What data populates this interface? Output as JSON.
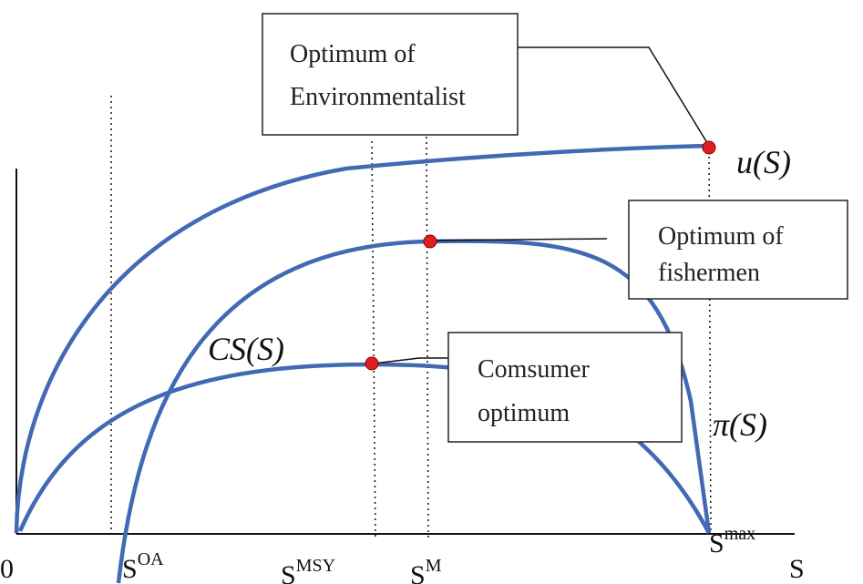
{
  "boxes": [
    {
      "lines": [
        "Optimum of",
        "Environmentalist"
      ]
    },
    {
      "lines": [
        "Optimum of",
        "fishermen"
      ]
    },
    {
      "lines": [
        "Comsumer",
        "optimum"
      ]
    }
  ],
  "curve_labels": [
    "u(S)",
    "CS(S)",
    "π(S)"
  ],
  "axis_labels": [
    {
      "base": "0"
    },
    {
      "base": "S",
      "sup": "OA"
    },
    {
      "base": "S",
      "sup": "MSY"
    },
    {
      "base": "S",
      "sup": "M"
    },
    {
      "base": "S",
      "sup": "max"
    },
    {
      "base": "S"
    }
  ]
}
